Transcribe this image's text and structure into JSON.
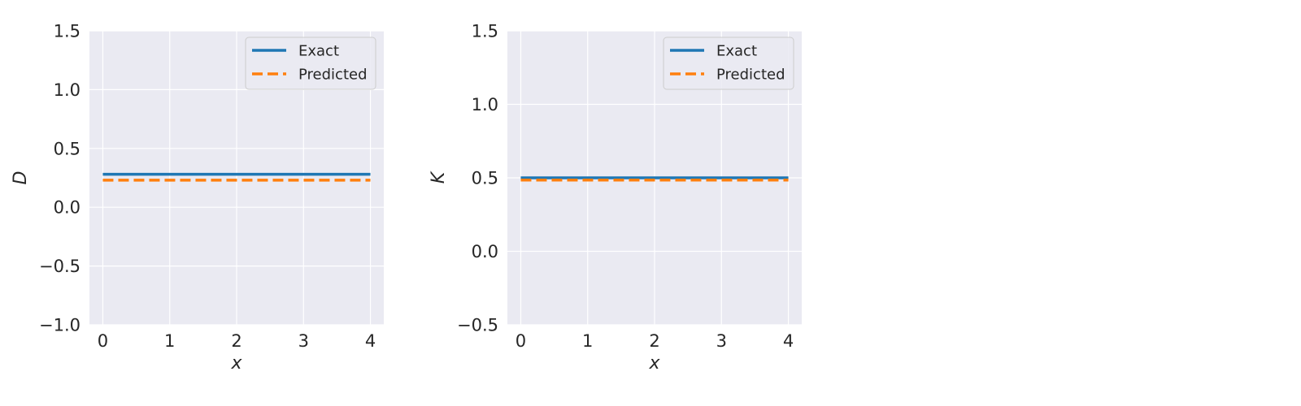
{
  "chart_data": [
    {
      "type": "line",
      "xlabel": "x",
      "ylabel": "D",
      "xlim": [
        -0.2,
        4.2
      ],
      "ylim": [
        -1.0,
        1.5
      ],
      "xticks": [
        0,
        1,
        2,
        3,
        4
      ],
      "yticks": [
        -1.0,
        -0.5,
        0.0,
        0.5,
        1.0,
        1.5
      ],
      "xtick_labels": [
        "0",
        "1",
        "2",
        "3",
        "4"
      ],
      "ytick_labels": [
        "−1.0",
        "−0.5",
        "0.0",
        "0.5",
        "1.0",
        "1.5"
      ],
      "grid": true,
      "legend_position": "top-right",
      "series": [
        {
          "name": "Exact",
          "x": [
            0,
            4
          ],
          "y": [
            0.28,
            0.28
          ],
          "color": "#1f77b4",
          "style": "solid"
        },
        {
          "name": "Predicted",
          "x": [
            0,
            4
          ],
          "y": [
            0.23,
            0.23
          ],
          "color": "#ff7f0e",
          "style": "dashed"
        }
      ]
    },
    {
      "type": "line",
      "xlabel": "x",
      "ylabel": "K",
      "xlim": [
        -0.2,
        4.2
      ],
      "ylim": [
        -0.5,
        1.5
      ],
      "xticks": [
        0,
        1,
        2,
        3,
        4
      ],
      "yticks": [
        -0.5,
        0.0,
        0.5,
        1.0,
        1.5
      ],
      "xtick_labels": [
        "0",
        "1",
        "2",
        "3",
        "4"
      ],
      "ytick_labels": [
        "−0.5",
        "0.0",
        "0.5",
        "1.0",
        "1.5"
      ],
      "grid": true,
      "legend_position": "top-right",
      "series": [
        {
          "name": "Exact",
          "x": [
            0,
            4
          ],
          "y": [
            0.5,
            0.5
          ],
          "color": "#1f77b4",
          "style": "solid"
        },
        {
          "name": "Predicted",
          "x": [
            0,
            4
          ],
          "y": [
            0.485,
            0.485
          ],
          "color": "#ff7f0e",
          "style": "dashed"
        }
      ]
    }
  ]
}
